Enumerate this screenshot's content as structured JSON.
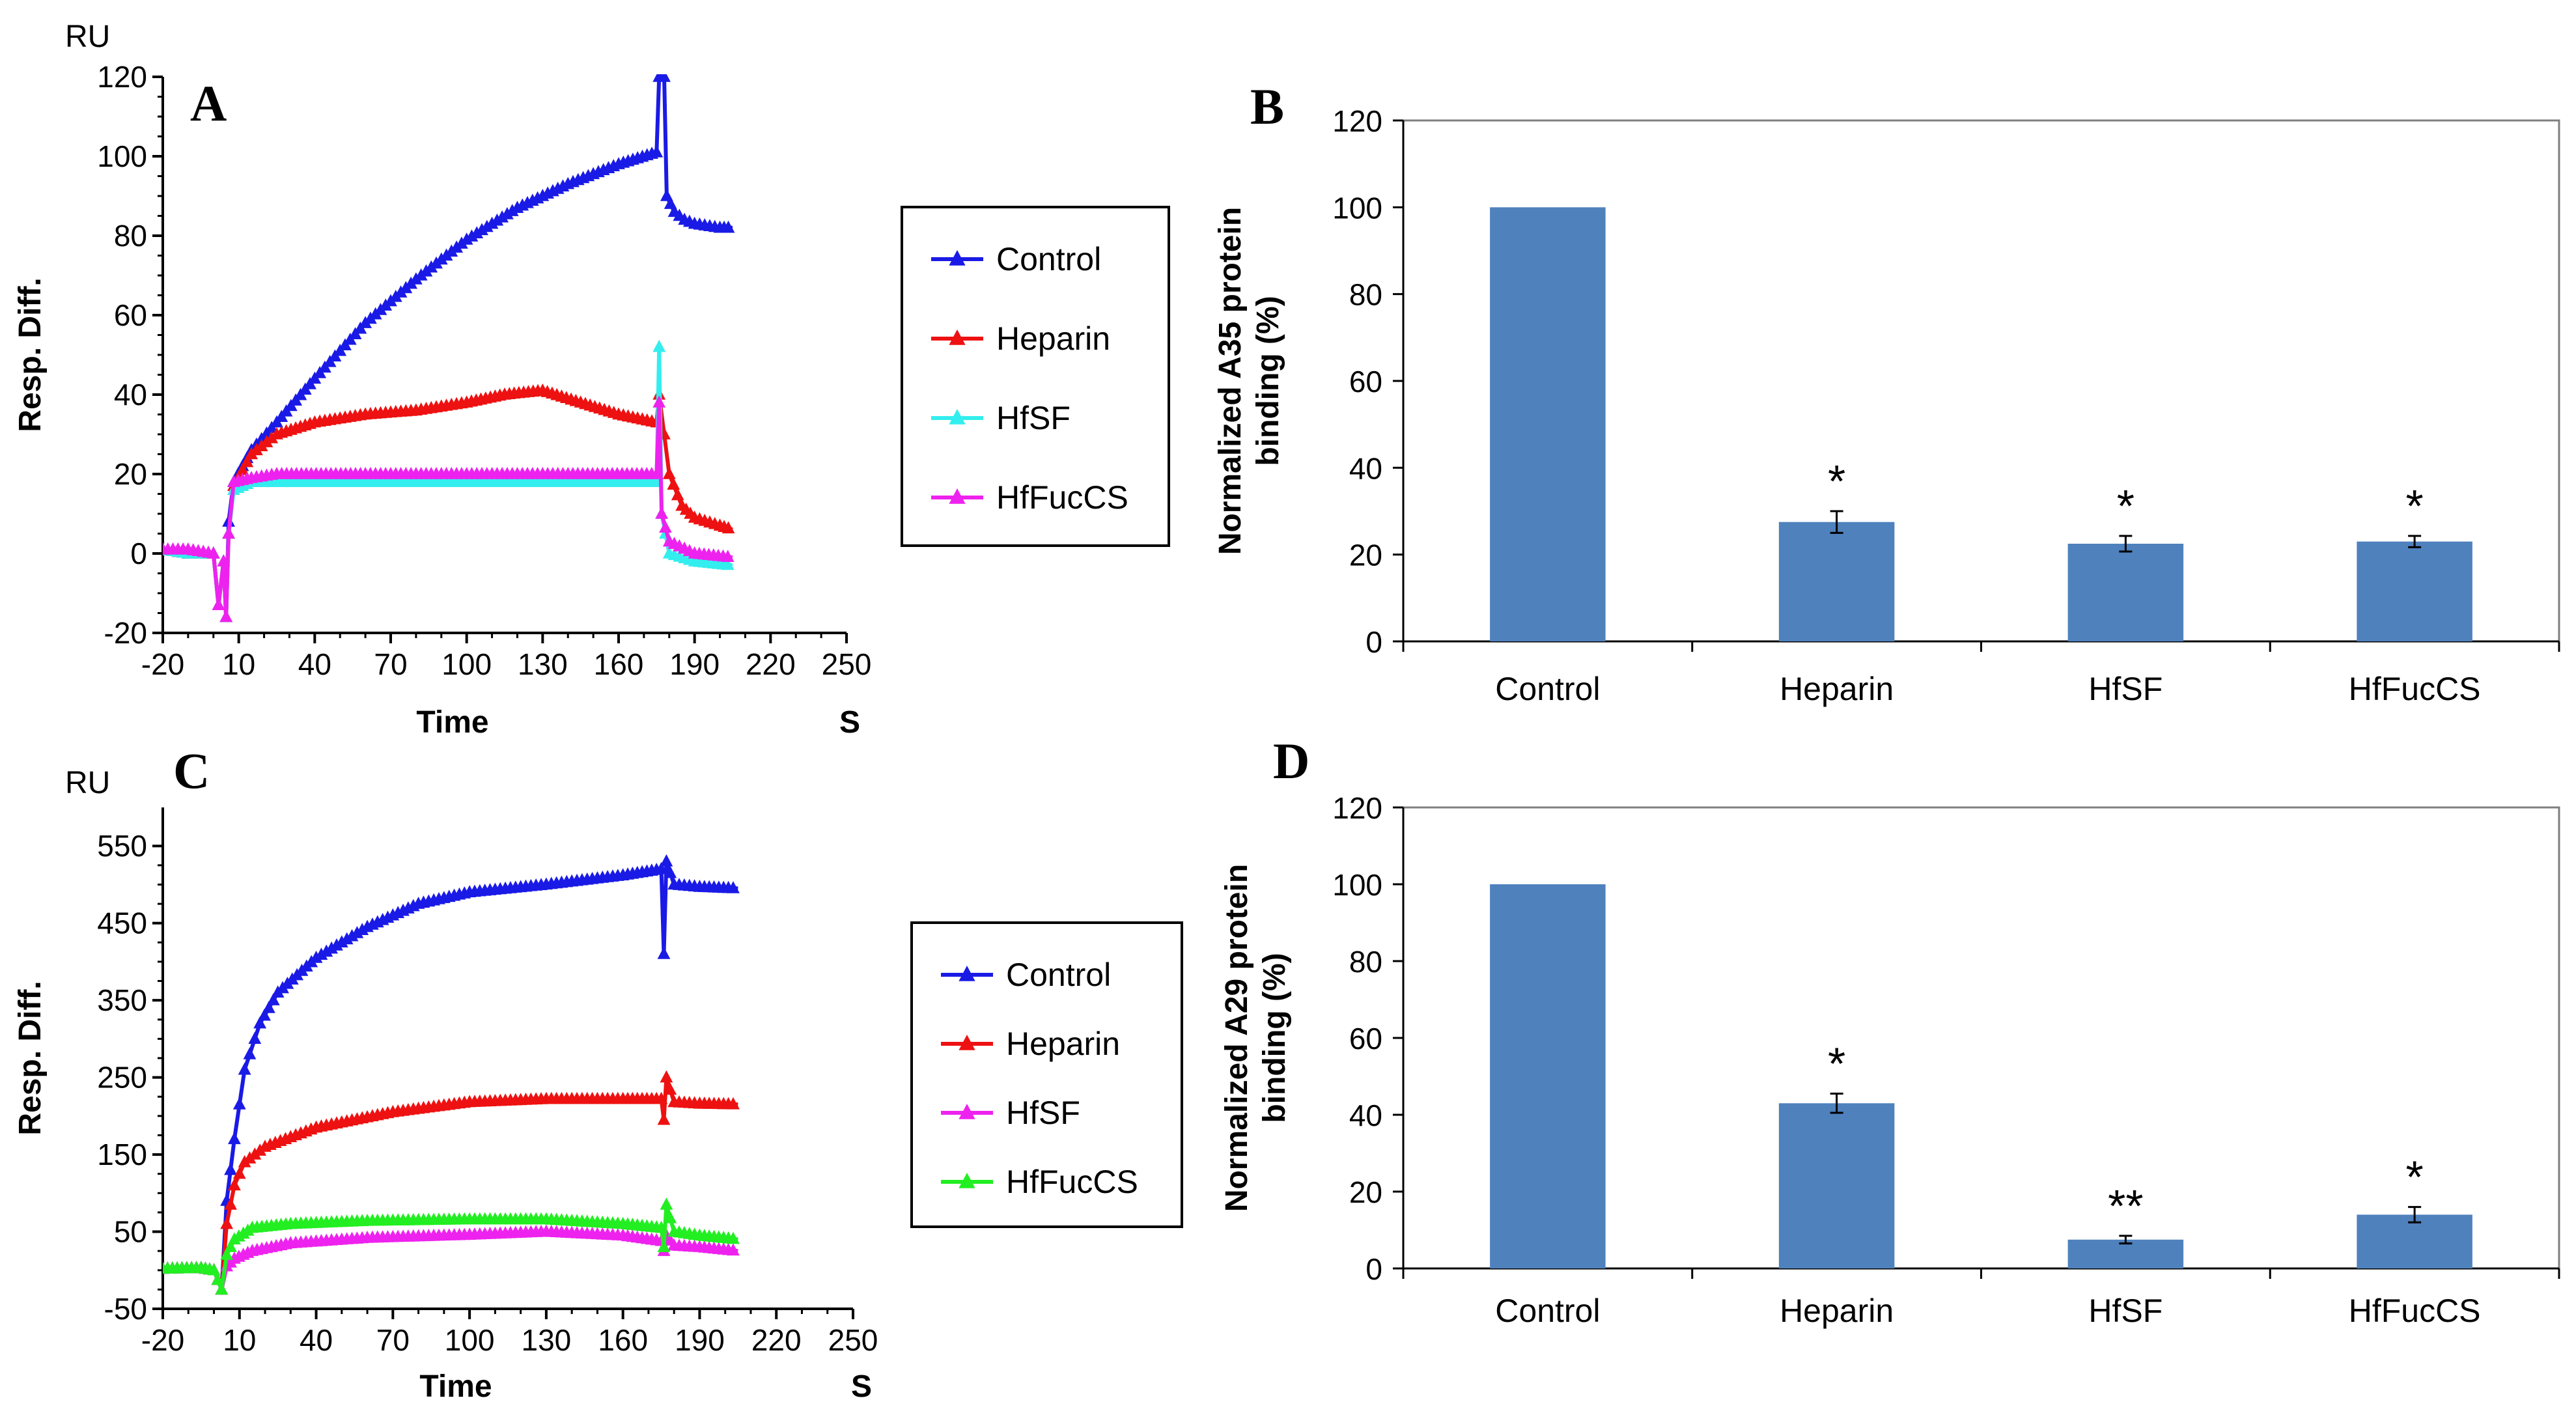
{
  "chart_data": [
    {
      "panel": "A",
      "type": "line",
      "y_unit": "RU",
      "ylabel": "Resp. Diff.",
      "xlabel": "Time",
      "x_unit": "S",
      "xlim": [
        -20,
        250
      ],
      "ylim": [
        -20,
        120
      ],
      "xticks": [
        -20,
        10,
        40,
        70,
        100,
        130,
        160,
        190,
        220,
        250
      ],
      "yticks": [
        -20,
        0,
        20,
        40,
        60,
        80,
        100,
        120
      ],
      "legend": [
        "Control",
        "Heparin",
        "HfSF",
        "HfFucCS"
      ],
      "colors": [
        "#1a1ae6",
        "#ee1111",
        "#33eeee",
        "#ee22ee"
      ],
      "series": [
        {
          "name": "Control",
          "points": [
            [
              -20,
              1
            ],
            [
              -10,
              0
            ],
            [
              0,
              0
            ],
            [
              2,
              -13
            ],
            [
              4,
              -2
            ],
            [
              5,
              -16
            ],
            [
              6,
              8
            ],
            [
              8,
              18
            ],
            [
              15,
              26
            ],
            [
              25,
              33
            ],
            [
              40,
              44
            ],
            [
              60,
              58
            ],
            [
              80,
              69
            ],
            [
              100,
              79
            ],
            [
              120,
              87
            ],
            [
              140,
              93
            ],
            [
              160,
              98
            ],
            [
              175,
              101
            ],
            [
              176,
              120
            ],
            [
              178,
              120
            ],
            [
              179,
              90
            ],
            [
              182,
              86
            ],
            [
              186,
              84
            ],
            [
              190,
              83
            ],
            [
              200,
              82
            ],
            [
              205,
              82
            ]
          ]
        },
        {
          "name": "Heparin",
          "points": [
            [
              -20,
              1
            ],
            [
              -10,
              0
            ],
            [
              0,
              0
            ],
            [
              2,
              -13
            ],
            [
              4,
              -2
            ],
            [
              5,
              -16
            ],
            [
              6,
              5
            ],
            [
              8,
              17
            ],
            [
              15,
              25
            ],
            [
              25,
              30
            ],
            [
              40,
              33
            ],
            [
              60,
              35
            ],
            [
              80,
              36
            ],
            [
              100,
              38
            ],
            [
              115,
              40
            ],
            [
              130,
              41
            ],
            [
              145,
              38
            ],
            [
              160,
              35
            ],
            [
              175,
              33
            ],
            [
              176,
              40
            ],
            [
              178,
              30
            ],
            [
              180,
              20
            ],
            [
              185,
              12
            ],
            [
              190,
              9
            ],
            [
              200,
              7
            ],
            [
              205,
              6
            ]
          ]
        },
        {
          "name": "HfSF",
          "points": [
            [
              -20,
              1
            ],
            [
              -10,
              0
            ],
            [
              0,
              0
            ],
            [
              2,
              -13
            ],
            [
              4,
              -2
            ],
            [
              5,
              -16
            ],
            [
              6,
              5
            ],
            [
              8,
              16
            ],
            [
              15,
              18
            ],
            [
              25,
              18
            ],
            [
              60,
              18
            ],
            [
              100,
              18
            ],
            [
              140,
              18
            ],
            [
              175,
              18
            ],
            [
              176,
              52
            ],
            [
              177,
              10
            ],
            [
              180,
              0
            ],
            [
              190,
              -2
            ],
            [
              205,
              -3
            ]
          ]
        },
        {
          "name": "HfFucCS",
          "points": [
            [
              -20,
              1
            ],
            [
              -10,
              1
            ],
            [
              0,
              0
            ],
            [
              2,
              -13
            ],
            [
              4,
              -2
            ],
            [
              5,
              -16
            ],
            [
              6,
              5
            ],
            [
              8,
              18
            ],
            [
              15,
              19
            ],
            [
              25,
              20
            ],
            [
              60,
              20
            ],
            [
              100,
              20
            ],
            [
              140,
              20
            ],
            [
              175,
              20
            ],
            [
              176,
              38
            ],
            [
              177,
              10
            ],
            [
              180,
              3
            ],
            [
              190,
              0
            ],
            [
              205,
              -1
            ]
          ]
        }
      ]
    },
    {
      "panel": "B",
      "type": "bar",
      "ylabel": "Normalized A35 protein binding (%)",
      "ylabel_lines": [
        "Normalized A35 protein",
        "binding (%)"
      ],
      "ylim": [
        0,
        120
      ],
      "yticks": [
        0,
        20,
        40,
        60,
        80,
        100,
        120
      ],
      "categories": [
        "Control",
        "Heparin",
        "HfSF",
        "HfFucCS"
      ],
      "values": [
        100,
        27.5,
        22.5,
        23
      ],
      "errors": [
        0,
        2.5,
        1.8,
        1.3
      ],
      "annotations": [
        "",
        "*",
        "*",
        "*"
      ],
      "bar_color": "#4f81bd"
    },
    {
      "panel": "C",
      "type": "line",
      "y_unit": "RU",
      "ylabel": "Resp. Diff.",
      "xlabel": "Time",
      "x_unit": "S",
      "xlim": [
        -20,
        250
      ],
      "ylim": [
        -50,
        600
      ],
      "xticks": [
        -20,
        10,
        40,
        70,
        100,
        130,
        160,
        190,
        220,
        250
      ],
      "yticks": [
        -50,
        50,
        150,
        250,
        350,
        450,
        550
      ],
      "legend": [
        "Control",
        "Heparin",
        "HfSF",
        "HfFucCS"
      ],
      "colors": [
        "#1a1ae6",
        "#ee1111",
        "#ee22ee",
        "#22ee22"
      ],
      "series": [
        {
          "name": "Control",
          "points": [
            [
              -20,
              2
            ],
            [
              -5,
              3
            ],
            [
              0,
              0
            ],
            [
              3,
              -25
            ],
            [
              5,
              90
            ],
            [
              8,
              170
            ],
            [
              12,
              260
            ],
            [
              18,
              320
            ],
            [
              25,
              360
            ],
            [
              40,
              405
            ],
            [
              60,
              445
            ],
            [
              80,
              475
            ],
            [
              100,
              490
            ],
            [
              130,
              500
            ],
            [
              160,
              512
            ],
            [
              175,
              520
            ],
            [
              176,
              410
            ],
            [
              177,
              530
            ],
            [
              180,
              500
            ],
            [
              190,
              497
            ],
            [
              205,
              495
            ]
          ]
        },
        {
          "name": "Heparin",
          "points": [
            [
              -20,
              2
            ],
            [
              -5,
              3
            ],
            [
              0,
              0
            ],
            [
              3,
              -25
            ],
            [
              5,
              60
            ],
            [
              8,
              110
            ],
            [
              12,
              140
            ],
            [
              20,
              160
            ],
            [
              40,
              185
            ],
            [
              70,
              205
            ],
            [
              100,
              218
            ],
            [
              130,
              222
            ],
            [
              160,
              222
            ],
            [
              175,
              222
            ],
            [
              176,
              195
            ],
            [
              177,
              250
            ],
            [
              180,
              218
            ],
            [
              190,
              216
            ],
            [
              205,
              215
            ]
          ]
        },
        {
          "name": "HfSF",
          "points": [
            [
              -20,
              2
            ],
            [
              -5,
              3
            ],
            [
              0,
              0
            ],
            [
              3,
              -25
            ],
            [
              5,
              5
            ],
            [
              8,
              15
            ],
            [
              15,
              25
            ],
            [
              30,
              35
            ],
            [
              60,
              42
            ],
            [
              100,
              46
            ],
            [
              130,
              50
            ],
            [
              160,
              45
            ],
            [
              175,
              38
            ],
            [
              176,
              25
            ],
            [
              177,
              45
            ],
            [
              180,
              32
            ],
            [
              190,
              30
            ],
            [
              205,
              25
            ]
          ]
        },
        {
          "name": "HfFucCS",
          "points": [
            [
              -20,
              2
            ],
            [
              -5,
              3
            ],
            [
              0,
              0
            ],
            [
              3,
              -25
            ],
            [
              5,
              20
            ],
            [
              8,
              40
            ],
            [
              15,
              55
            ],
            [
              30,
              60
            ],
            [
              60,
              64
            ],
            [
              100,
              66
            ],
            [
              130,
              66
            ],
            [
              160,
              60
            ],
            [
              175,
              55
            ],
            [
              176,
              30
            ],
            [
              177,
              85
            ],
            [
              180,
              50
            ],
            [
              190,
              45
            ],
            [
              205,
              40
            ]
          ]
        }
      ]
    },
    {
      "panel": "D",
      "type": "bar",
      "ylabel": "Normalized A29 protein binding (%)",
      "ylabel_lines": [
        "Normalized A29 protein",
        "binding (%)"
      ],
      "ylim": [
        0,
        120
      ],
      "yticks": [
        0,
        20,
        40,
        60,
        80,
        100,
        120
      ],
      "categories": [
        "Control",
        "Heparin",
        "HfSF",
        "HfFucCS"
      ],
      "values": [
        100,
        43,
        7.5,
        14
      ],
      "errors": [
        0,
        2.5,
        1.0,
        2.0
      ],
      "annotations": [
        "",
        "*",
        "**",
        "*"
      ],
      "bar_color": "#4f81bd"
    }
  ]
}
